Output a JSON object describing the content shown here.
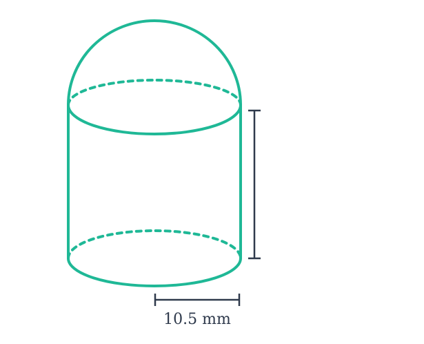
{
  "colors": {
    "shape_stroke": "#1fb896",
    "dimension_stroke": "#2f3a4c",
    "label_text": "#2f3a4c"
  },
  "labels": {
    "radius": "10.5 mm"
  }
}
